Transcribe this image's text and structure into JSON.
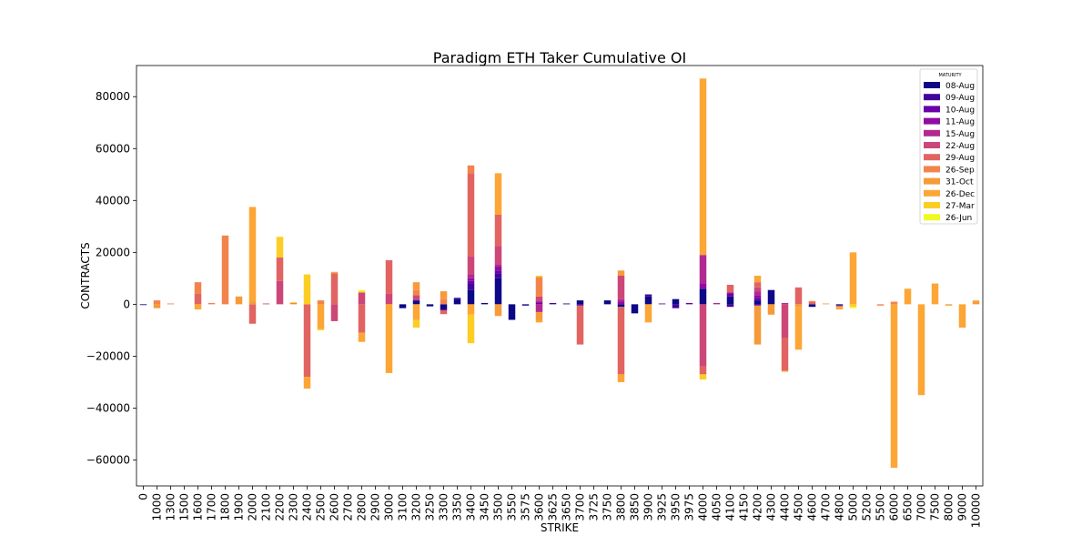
{
  "chart_data": {
    "type": "bar",
    "stacked": true,
    "title": "Paradigm ETH Taker Cumulative OI",
    "xlabel": "STRIKE",
    "ylabel": "CONTRACTS",
    "ylim": [
      -70000,
      92000
    ],
    "yticks": [
      -60000,
      -40000,
      -20000,
      0,
      20000,
      40000,
      60000,
      80000
    ],
    "ytick_labels": [
      "−60000",
      "−40000",
      "−20000",
      "0",
      "20000",
      "40000",
      "60000",
      "80000"
    ],
    "legend_title": "MATURITY",
    "legend_position": "top-right",
    "categories": [
      "0",
      "1000",
      "1300",
      "1500",
      "1600",
      "1700",
      "1800",
      "1900",
      "2000",
      "2100",
      "2200",
      "2300",
      "2400",
      "2500",
      "2600",
      "2700",
      "2800",
      "2900",
      "3000",
      "3100",
      "3200",
      "3250",
      "3300",
      "3350",
      "3400",
      "3450",
      "3500",
      "3550",
      "3575",
      "3600",
      "3625",
      "3650",
      "3700",
      "3725",
      "3750",
      "3800",
      "3850",
      "3900",
      "3925",
      "3950",
      "3975",
      "4000",
      "4050",
      "4100",
      "4150",
      "4200",
      "4300",
      "4400",
      "4500",
      "4600",
      "4700",
      "4800",
      "5000",
      "5200",
      "5500",
      "6000",
      "6500",
      "7000",
      "7500",
      "8000",
      "9000",
      "10000"
    ],
    "series": [
      {
        "name": "08-Aug",
        "color": "#0d0887",
        "values": {
          "0": -300,
          "3100": -1500,
          "3200": 1500,
          "3250": -800,
          "3300": -1800,
          "3350": 2000,
          "3400": 5500,
          "3450": 500,
          "3500": 10000,
          "3550": -6000,
          "3575": -500,
          "3650": 300,
          "3700": 1500,
          "3750": 1500,
          "3800": -1000,
          "3850": -3500,
          "3900": 3000,
          "3950": 2000,
          "4000": 6000,
          "4100": 3000,
          "4200": 1500,
          "4300": 5500,
          "4600": -1000,
          "4800": -500
        }
      },
      {
        "name": "09-Aug",
        "color": "#41049d",
        "values": {
          "3300": -500,
          "3350": 500,
          "3400": 2500,
          "3500": 2000,
          "3625": 500,
          "3700": -500,
          "3900": 800,
          "3950": -1500,
          "4100": -1000,
          "4200": -500
        }
      },
      {
        "name": "10-Aug",
        "color": "#6a00a8",
        "values": {
          "3400": 1000,
          "3500": 1000,
          "3600": 500,
          "3925": 300,
          "3975": 500,
          "4100": 1000,
          "4200": 1000
        }
      },
      {
        "name": "11-Aug",
        "color": "#8f0da4",
        "values": {
          "3400": 1000,
          "3500": 1500,
          "3600": 500,
          "3800": 1000,
          "4000": 2000,
          "4100": 500,
          "4200": 1000
        }
      },
      {
        "name": "15-Aug",
        "color": "#b12a90",
        "values": {
          "3400": 1500,
          "3500": 1000,
          "3600": -3000,
          "3800": 1000,
          "4000": 11000,
          "4050": 500,
          "4200": 1500,
          "4400": 500
        }
      },
      {
        "name": "22-Aug",
        "color": "#cc4778",
        "values": {
          "2100": 300,
          "2200": 9000,
          "2600": -6500,
          "2800": 4500,
          "3000": 4000,
          "3200": 2000,
          "3400": 7000,
          "3500": 7000,
          "3600": 2000,
          "3800": 9000,
          "4000": -24000,
          "4200": 1500,
          "4400": -13000
        }
      },
      {
        "name": "29-Aug",
        "color": "#e16462",
        "values": {
          "1600": 4000,
          "2000": -7500,
          "2200": 9000,
          "2400": -28000,
          "2600": 12000,
          "2800": -11000,
          "3000": 13000,
          "3300": -1500,
          "3400": 32000,
          "3500": 12000,
          "3700": -15000,
          "3800": -26000,
          "4000": -3000,
          "4100": 3000,
          "4200": 2000,
          "4400": -12500,
          "4500": 6500,
          "4600": 1000,
          "4800": -500
        }
      },
      {
        "name": "26-Sep",
        "color": "#f2844b",
        "values": {
          "1000": 1500,
          "1300": 300,
          "1600": 4500,
          "1700": 500,
          "1800": 26500,
          "2300": 500,
          "2500": 1500,
          "3200": 2000,
          "3300": 2000,
          "3400": 3000,
          "3600": 7500,
          "5500": -500,
          "6000": 1000
        }
      },
      {
        "name": "31-Oct",
        "color": "#f79a3a",
        "values": {
          "1000": -1500,
          "1900": 3000,
          "2000": 1000,
          "3200": 3000,
          "3300": 3000,
          "3500": -4500,
          "3600": -3000,
          "3800": 2000,
          "4200": -15000,
          "4300": -4000,
          "4400": -500,
          "4500": -1000,
          "4700": 300,
          "8000": -500,
          "10000": 1000
        }
      },
      {
        "name": "26-Dec",
        "color": "#fca636",
        "values": {
          "1600": -2000,
          "2000": 36500,
          "2400": -4500,
          "2500": -9500,
          "2600": 500,
          "2800": -3500,
          "3000": -26500,
          "3200": -6000,
          "3400": -4000,
          "3500": 16000,
          "3600": -1000,
          "3800": -3000,
          "3900": -7000,
          "4000": 68000,
          "4200": 2500,
          "4500": -16500,
          "4600": 300,
          "4800": -1000,
          "5000": 20000,
          "6000": -63000,
          "6500": 6000,
          "7000": -35000,
          "7500": 8000,
          "9000": -9000,
          "10000": 500
        }
      },
      {
        "name": "27-Mar",
        "color": "#fcce25",
        "values": {
          "2200": 8000,
          "2300": 300,
          "2400": 11500,
          "2500": -500,
          "2800": 500,
          "3200": -3000,
          "3400": -11000,
          "3600": 500,
          "4000": -2000,
          "5000": -1000
        }
      },
      {
        "name": "26-Jun",
        "color": "#f0f921",
        "values": {
          "2800": 500,
          "5000": -500
        }
      }
    ]
  }
}
